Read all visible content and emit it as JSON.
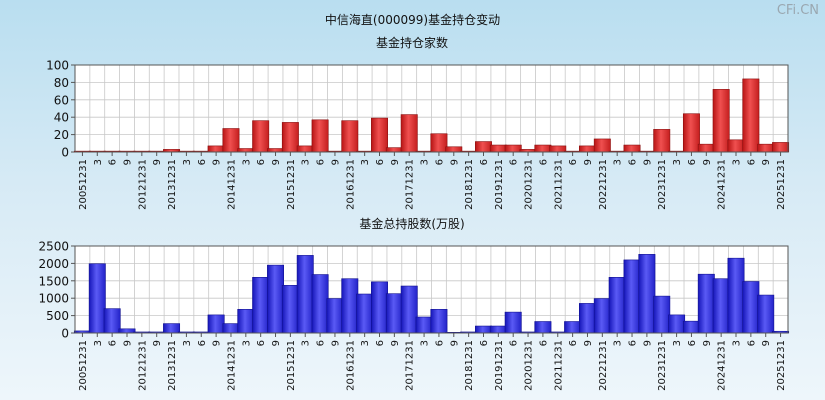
{
  "page_title": "中信海直(000099)基金持仓变动",
  "watermark": "CFi.CN",
  "chart_data": [
    {
      "type": "bar",
      "title": "基金持仓家数",
      "ylim": [
        0,
        100
      ],
      "yticks": [
        0,
        20,
        40,
        60,
        80,
        100
      ],
      "grid": true,
      "color": "#e23a3a",
      "x_tick_labels": [
        "20051231",
        "3",
        "6",
        "9",
        "20121231",
        "9",
        "20131231",
        "3",
        "6",
        "9",
        "20141231",
        "3",
        "6",
        "9",
        "20151231",
        "3",
        "6",
        "9",
        "20161231",
        "3",
        "6",
        "9",
        "20171231",
        "3",
        "6",
        "9",
        "20181231",
        "6",
        "20191231",
        "6",
        "20201231",
        "6",
        "20211231",
        "6",
        "9",
        "20221231",
        "3",
        "6",
        "9",
        "20231231",
        "3",
        "6",
        "9",
        "20241231",
        "3",
        "6",
        "9",
        "20251231"
      ],
      "x_tick_display": [
        "20051231",
        "3",
        "6",
        "9",
        "20121231",
        "9",
        "20131231",
        "3",
        "6",
        "9",
        "20141231",
        "3",
        "6",
        "9",
        "20151231",
        "3",
        "6",
        "9",
        "20161231",
        "3",
        "6",
        "9",
        "20171231",
        "3",
        "6",
        "9",
        "20181231",
        "6",
        "20191231",
        "6",
        "20201231",
        "6",
        "20211231",
        "6",
        "9",
        "20221231",
        "3",
        "6",
        "9",
        "20231231",
        "3",
        "6",
        "9",
        "20241231",
        "3",
        "6",
        "9",
        "20251231"
      ],
      "values": [
        1,
        1,
        1,
        1,
        1,
        1,
        3,
        1,
        1,
        7,
        27,
        4,
        36,
        4,
        34,
        7,
        37,
        1,
        36,
        1,
        39,
        5,
        43,
        1,
        21,
        6,
        1,
        12,
        8,
        8,
        3,
        8,
        7,
        1,
        7,
        15,
        1,
        8,
        1,
        26,
        1,
        44,
        9,
        72,
        14,
        84,
        9,
        11
      ]
    },
    {
      "type": "bar",
      "title": "基金总持股数(万股)",
      "ylim": [
        0,
        2500
      ],
      "yticks": [
        0,
        500,
        1000,
        1500,
        2000,
        2500
      ],
      "grid": true,
      "color": "#3a3ae0",
      "x_tick_labels": [
        "20051231",
        "3",
        "6",
        "9",
        "20121231",
        "9",
        "20131231",
        "3",
        "6",
        "9",
        "20141231",
        "3",
        "6",
        "9",
        "20151231",
        "3",
        "6",
        "9",
        "20161231",
        "3",
        "6",
        "9",
        "20171231",
        "3",
        "6",
        "9",
        "20181231",
        "6",
        "20191231",
        "6",
        "20201231",
        "6",
        "20211231",
        "6",
        "9",
        "20221231",
        "3",
        "6",
        "9",
        "20231231",
        "3",
        "6",
        "9",
        "20241231",
        "3",
        "6",
        "9",
        "20251231"
      ],
      "values": [
        60,
        1990,
        700,
        120,
        30,
        30,
        270,
        30,
        30,
        520,
        270,
        680,
        1600,
        1950,
        1370,
        2230,
        1680,
        990,
        1560,
        1120,
        1470,
        1130,
        1350,
        460,
        680,
        20,
        30,
        200,
        200,
        600,
        30,
        330,
        30,
        330,
        850,
        990,
        1600,
        2100,
        2260,
        1060,
        520,
        340,
        1690,
        1560,
        2150,
        1480,
        1090,
        50
      ]
    }
  ]
}
